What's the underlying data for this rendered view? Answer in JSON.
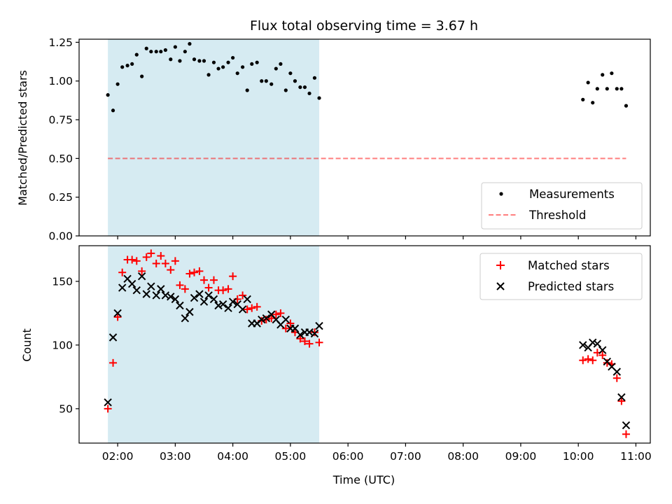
{
  "title": "Flux total observing time = 3.67 h",
  "colors": {
    "shade": "#add8e6",
    "threshold": "#ff0000",
    "measurements": "#000000",
    "matched": "#ff0000",
    "predicted": "#000000"
  },
  "chart_data": [
    {
      "type": "scatter",
      "ylabel": "Matched/Predicted stars",
      "xlim": [
        1.33,
        11.25
      ],
      "ylim": [
        0,
        1.27
      ],
      "yticks": [
        0.0,
        0.25,
        0.5,
        0.75,
        1.0,
        1.25
      ],
      "ytick_labels": [
        "0.00",
        "0.25",
        "0.50",
        "0.75",
        "1.00",
        "1.25"
      ],
      "xtick_positions_hours": [
        2,
        3,
        4,
        5,
        6,
        7,
        8,
        9,
        10,
        11
      ],
      "shaded_interval_hours": [
        1.83,
        5.5
      ],
      "legend": {
        "position": "lower right",
        "entries": [
          "Measurements",
          "Threshold"
        ]
      },
      "threshold": {
        "name": "Threshold",
        "y": 0.5,
        "x_range_hours": [
          1.83,
          10.83
        ],
        "style": "dashed"
      },
      "series": [
        {
          "name": "Measurements",
          "x": [
            1.83,
            1.92,
            2.0,
            2.08,
            2.17,
            2.25,
            2.33,
            2.42,
            2.5,
            2.58,
            2.67,
            2.75,
            2.83,
            2.92,
            3.0,
            3.08,
            3.17,
            3.25,
            3.33,
            3.42,
            3.5,
            3.58,
            3.67,
            3.75,
            3.83,
            3.92,
            4.0,
            4.08,
            4.17,
            4.25,
            4.33,
            4.42,
            4.5,
            4.58,
            4.67,
            4.75,
            4.83,
            4.92,
            5.0,
            5.08,
            5.17,
            5.25,
            5.33,
            5.42,
            5.5,
            10.08,
            10.17,
            10.25,
            10.33,
            10.42,
            10.5,
            10.58,
            10.67,
            10.75,
            10.83
          ],
          "y": [
            0.91,
            0.81,
            0.98,
            1.09,
            1.1,
            1.11,
            1.17,
            1.03,
            1.21,
            1.19,
            1.19,
            1.19,
            1.2,
            1.14,
            1.22,
            1.13,
            1.19,
            1.24,
            1.14,
            1.13,
            1.13,
            1.04,
            1.12,
            1.08,
            1.09,
            1.12,
            1.15,
            1.05,
            1.09,
            0.94,
            1.11,
            1.12,
            1.0,
            1.0,
            0.98,
            1.08,
            1.11,
            0.94,
            1.05,
            1.0,
            0.96,
            0.96,
            0.92,
            1.02,
            0.89,
            0.88,
            0.99,
            0.86,
            0.95,
            1.04,
            0.95,
            1.05,
            0.95,
            0.95,
            0.84
          ]
        }
      ]
    },
    {
      "type": "scatter",
      "ylabel": "Count",
      "xlabel": "Time (UTC)",
      "xlim": [
        1.33,
        11.25
      ],
      "ylim": [
        23,
        178
      ],
      "yticks": [
        50,
        100,
        150
      ],
      "ytick_labels": [
        "50",
        "100",
        "150"
      ],
      "xtick_positions_hours": [
        2,
        3,
        4,
        5,
        6,
        7,
        8,
        9,
        10,
        11
      ],
      "xtick_labels": [
        "02:00",
        "03:00",
        "04:00",
        "05:00",
        "06:00",
        "07:00",
        "08:00",
        "09:00",
        "10:00",
        "11:00"
      ],
      "shaded_interval_hours": [
        1.83,
        5.5
      ],
      "legend": {
        "position": "upper right",
        "entries": [
          "Matched stars",
          "Predicted stars"
        ]
      },
      "series": [
        {
          "name": "Matched stars",
          "marker": "+",
          "x": [
            1.83,
            1.92,
            2.0,
            2.08,
            2.17,
            2.25,
            2.33,
            2.42,
            2.5,
            2.58,
            2.67,
            2.75,
            2.83,
            2.92,
            3.0,
            3.08,
            3.17,
            3.25,
            3.33,
            3.42,
            3.5,
            3.58,
            3.67,
            3.75,
            3.83,
            3.92,
            4.0,
            4.08,
            4.17,
            4.25,
            4.33,
            4.42,
            4.5,
            4.58,
            4.67,
            4.75,
            4.83,
            4.92,
            5.0,
            5.08,
            5.17,
            5.25,
            5.33,
            5.42,
            5.5,
            10.08,
            10.17,
            10.25,
            10.33,
            10.42,
            10.5,
            10.58,
            10.67,
            10.75,
            10.83
          ],
          "y": [
            50,
            86,
            122,
            157,
            167,
            167,
            166,
            158,
            169,
            172,
            164,
            170,
            164,
            159,
            166,
            147,
            144,
            156,
            157,
            158,
            151,
            145,
            151,
            143,
            143,
            144,
            154,
            136,
            139,
            128,
            129,
            130,
            119,
            120,
            121,
            124,
            125,
            113,
            117,
            110,
            105,
            103,
            101,
            110,
            102,
            88,
            89,
            88,
            94,
            92,
            86,
            85,
            74,
            56,
            30
          ]
        },
        {
          "name": "Predicted stars",
          "marker": "x",
          "x": [
            1.83,
            1.92,
            2.0,
            2.08,
            2.17,
            2.25,
            2.33,
            2.42,
            2.5,
            2.58,
            2.67,
            2.75,
            2.83,
            2.92,
            3.0,
            3.08,
            3.17,
            3.25,
            3.33,
            3.42,
            3.5,
            3.58,
            3.67,
            3.75,
            3.83,
            3.92,
            4.0,
            4.08,
            4.17,
            4.25,
            4.33,
            4.42,
            4.5,
            4.58,
            4.67,
            4.75,
            4.83,
            4.92,
            5.0,
            5.08,
            5.17,
            5.25,
            5.33,
            5.42,
            5.5,
            10.08,
            10.17,
            10.25,
            10.33,
            10.42,
            10.5,
            10.58,
            10.67,
            10.75,
            10.83
          ],
          "y": [
            55,
            106,
            125,
            145,
            152,
            148,
            143,
            154,
            140,
            146,
            139,
            144,
            139,
            138,
            136,
            131,
            121,
            126,
            137,
            140,
            134,
            139,
            136,
            131,
            132,
            129,
            134,
            132,
            128,
            136,
            117,
            117,
            120,
            121,
            124,
            120,
            116,
            120,
            113,
            113,
            108,
            110,
            110,
            109,
            115,
            100,
            98,
            102,
            101,
            96,
            87,
            83,
            79,
            59,
            37
          ]
        }
      ]
    }
  ]
}
